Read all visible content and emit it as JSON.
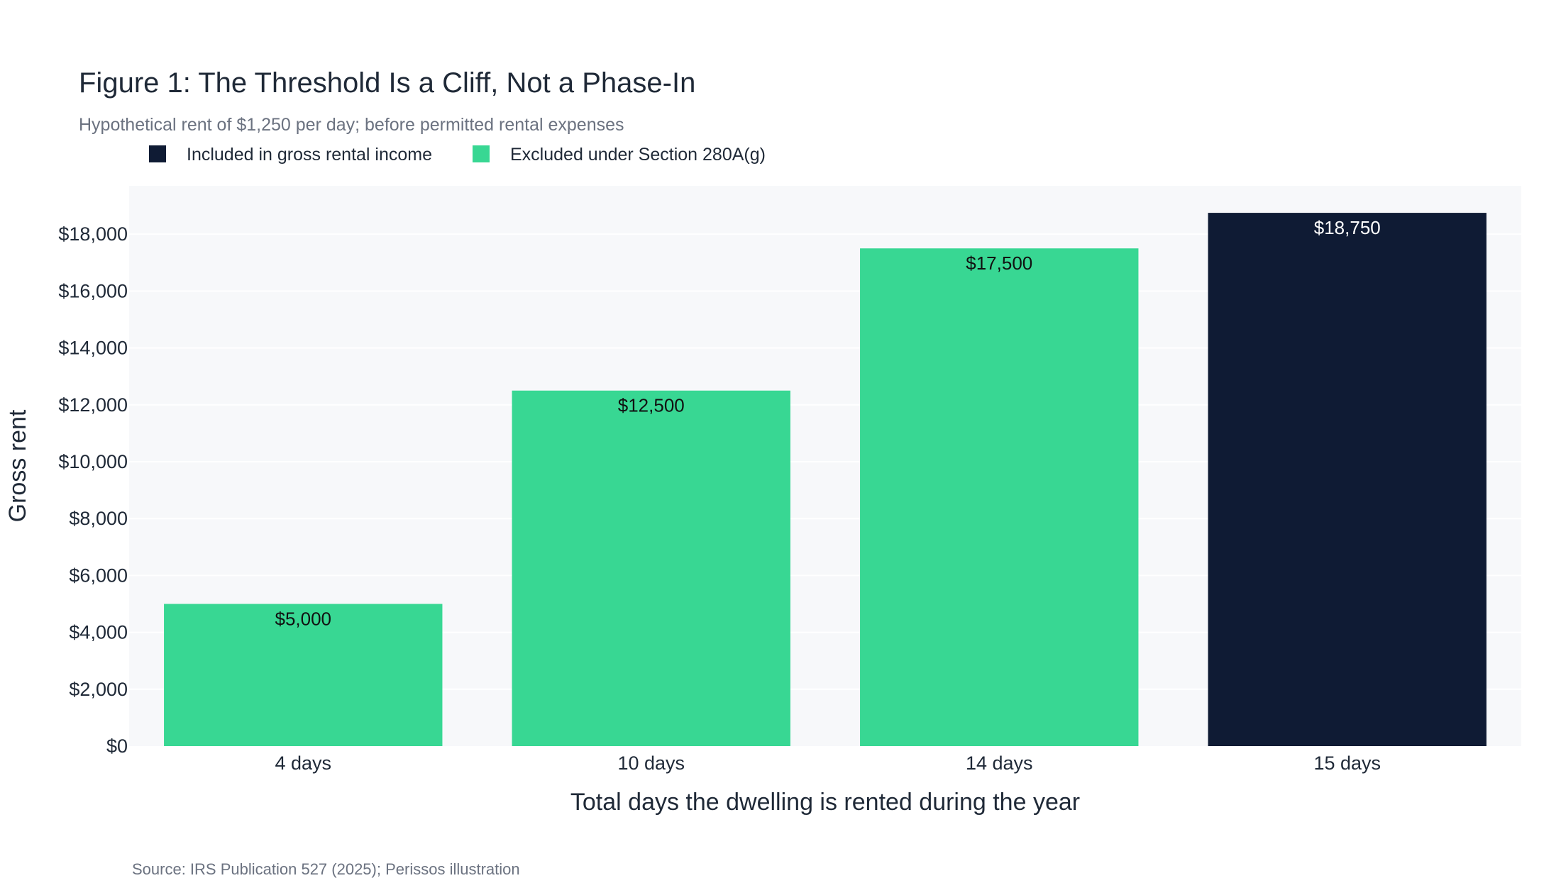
{
  "chart_data": {
    "type": "bar",
    "title": "Figure 1: The Threshold Is a Cliff, Not a Phase-In",
    "subtitle": "Hypothetical rent of $1,250 per day; before permitted rental expenses",
    "xlabel": "Total days the dwelling is rented during the year",
    "ylabel": "Gross rent",
    "source": "Source: IRS Publication 527 (2025); Perissos illustration",
    "categories": [
      "4 days",
      "10 days",
      "14 days",
      "15 days"
    ],
    "values": [
      5000,
      12500,
      17500,
      18750
    ],
    "value_labels": [
      "$5,000",
      "$12,500",
      "$17,500",
      "$18,750"
    ],
    "bar_groups": [
      "excluded",
      "excluded",
      "excluded",
      "included"
    ],
    "ylim": [
      0,
      19700
    ],
    "y_ticks": [
      0,
      2000,
      4000,
      6000,
      8000,
      10000,
      12000,
      14000,
      16000,
      18000
    ],
    "y_tick_labels": [
      "$0",
      "$2,000",
      "$4,000",
      "$6,000",
      "$8,000",
      "$10,000",
      "$12,000",
      "$14,000",
      "$16,000",
      "$18,000"
    ],
    "grid": true,
    "legend_position": "top-left",
    "legend": [
      {
        "key": "included",
        "label": "Included in gross rental income",
        "color": "#0f1b34"
      },
      {
        "key": "excluded",
        "label": "Excluded under Section 280A(g)",
        "color": "#38d793"
      }
    ],
    "colors": {
      "plot_background": "#f7f8fa",
      "gridline": "#ffffff",
      "label_on_excluded": "#111111",
      "label_on_included": "#ffffff"
    }
  }
}
